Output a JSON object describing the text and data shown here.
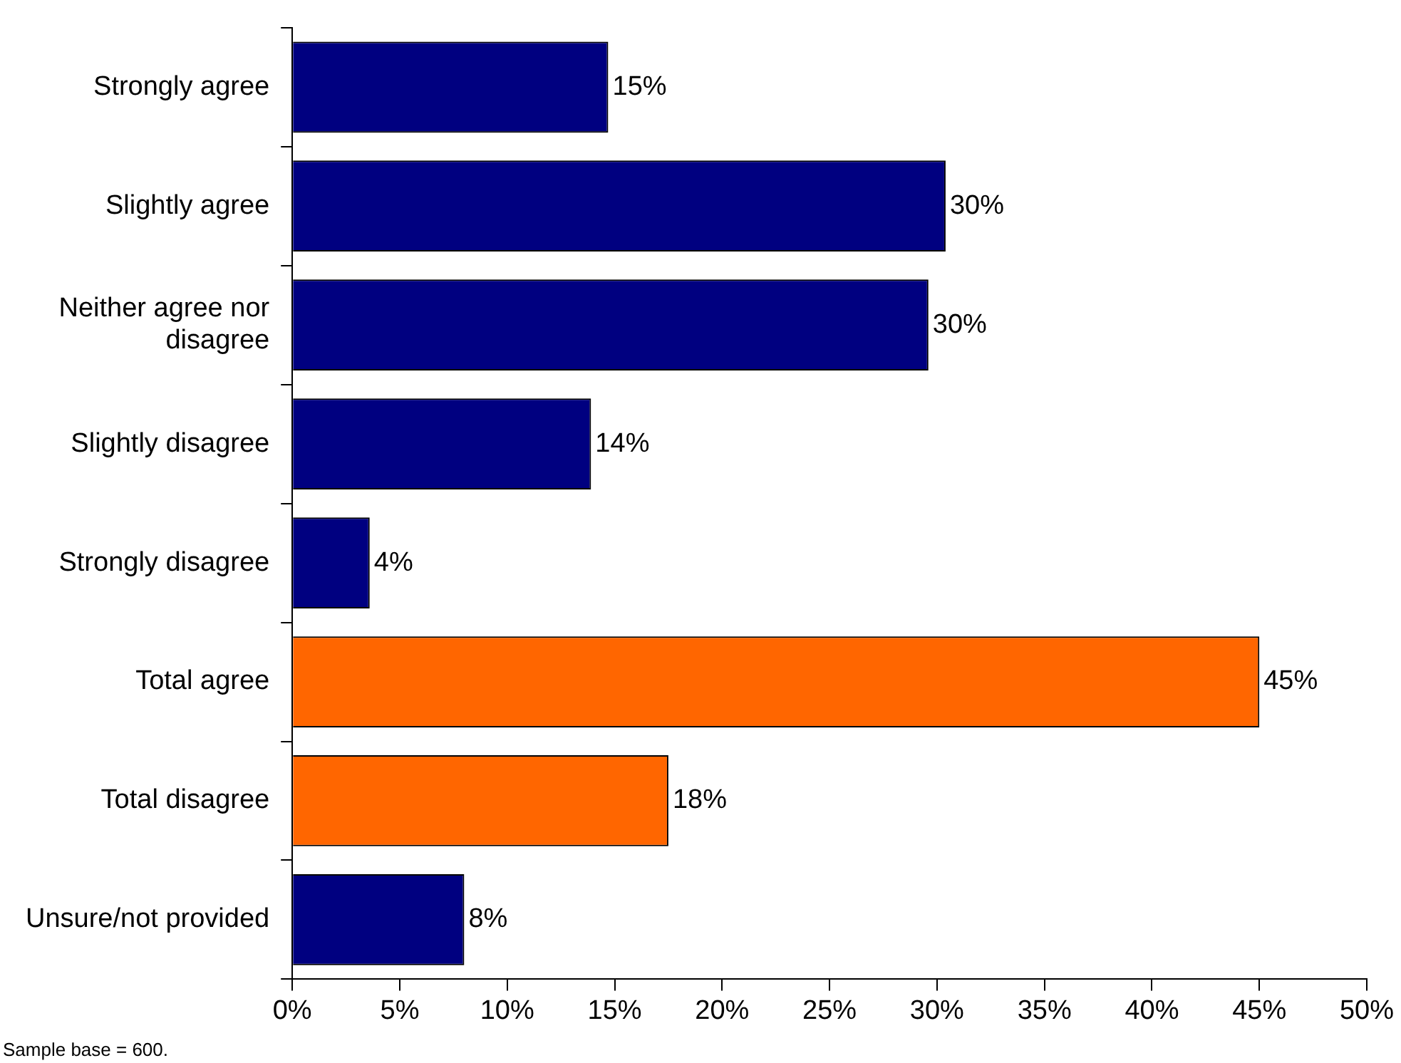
{
  "chart_data": {
    "type": "bar",
    "orientation": "horizontal",
    "categories": [
      "Strongly agree",
      "Slightly agree",
      "Neither agree nor disagree",
      "Slightly disagree",
      "Strongly disagree",
      "Total agree",
      "Total disagree",
      "Unsure/not provided"
    ],
    "values": [
      14.7,
      30.4,
      29.6,
      13.9,
      3.6,
      45.0,
      17.5,
      8.0
    ],
    "colors": [
      "#000080",
      "#000080",
      "#000080",
      "#000080",
      "#000080",
      "#ff6600",
      "#ff6600",
      "#000080"
    ],
    "value_labels": [
      "15%",
      "30%",
      "30%",
      "14%",
      "4%",
      "45%",
      "18%",
      "8%"
    ],
    "xlim": [
      0,
      50
    ],
    "xticks": [
      {
        "value": 0,
        "label": "0%"
      },
      {
        "value": 5,
        "label": "5%"
      },
      {
        "value": 10,
        "label": "10%"
      },
      {
        "value": 15,
        "label": "15%"
      },
      {
        "value": 20,
        "label": "20%"
      },
      {
        "value": 25,
        "label": "25%"
      },
      {
        "value": 30,
        "label": "30%"
      },
      {
        "value": 35,
        "label": "35%"
      },
      {
        "value": 40,
        "label": "40%"
      },
      {
        "value": 45,
        "label": "45%"
      },
      {
        "value": 50,
        "label": "50%"
      }
    ],
    "grid": false,
    "legend": false,
    "annotations": [
      "Sample base = 600."
    ]
  }
}
